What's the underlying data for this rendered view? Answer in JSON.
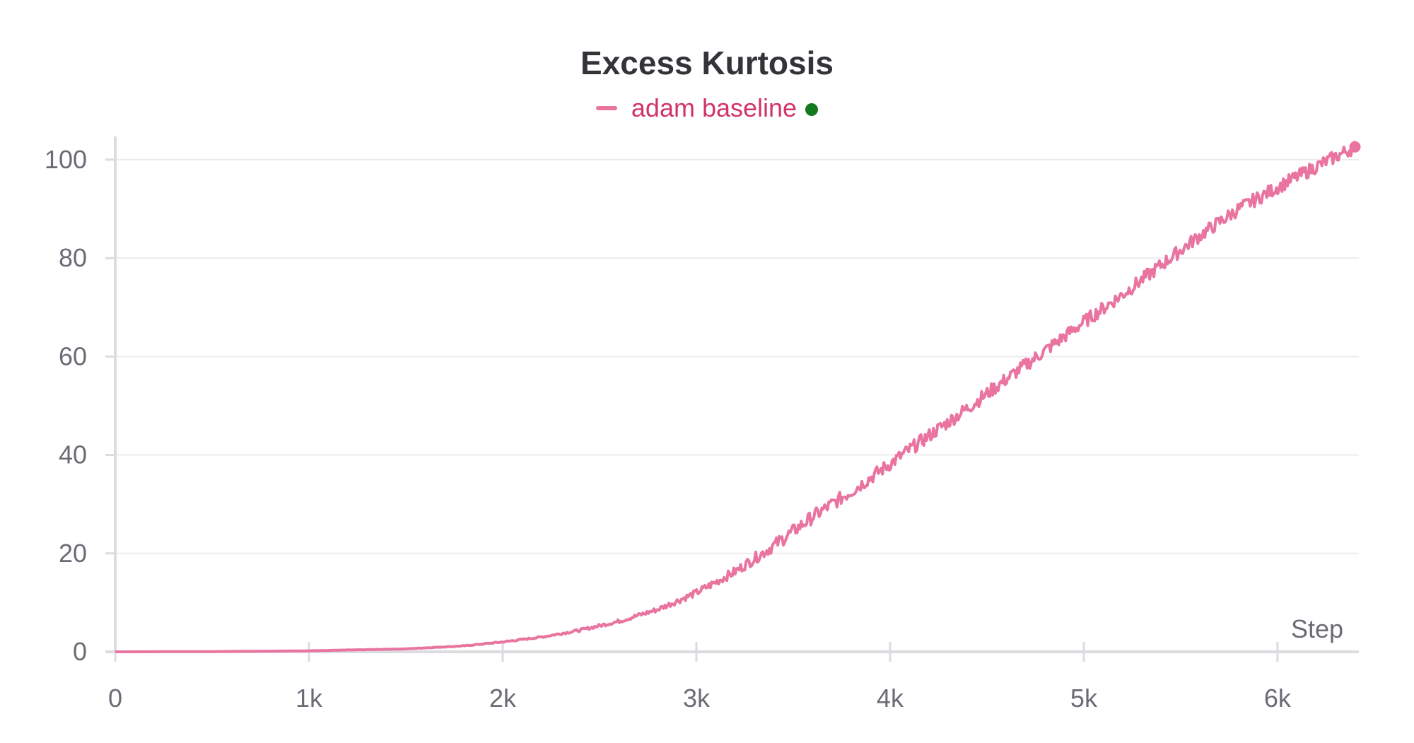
{
  "chart_data": {
    "type": "line",
    "title": "Excess Kurtosis",
    "xlabel": "Step",
    "ylabel": "",
    "xlim": [
      0,
      6420
    ],
    "ylim": [
      0,
      103
    ],
    "x_ticks": [
      {
        "value": 0,
        "label": "0"
      },
      {
        "value": 1000,
        "label": "1k"
      },
      {
        "value": 2000,
        "label": "2k"
      },
      {
        "value": 3000,
        "label": "3k"
      },
      {
        "value": 4000,
        "label": "4k"
      },
      {
        "value": 5000,
        "label": "5k"
      },
      {
        "value": 6000,
        "label": "6k"
      }
    ],
    "y_ticks": [
      {
        "value": 0,
        "label": "0"
      },
      {
        "value": 20,
        "label": "20"
      },
      {
        "value": 40,
        "label": "40"
      },
      {
        "value": 60,
        "label": "60"
      },
      {
        "value": 80,
        "label": "80"
      },
      {
        "value": 100,
        "label": "100"
      }
    ],
    "grid": "horizontal",
    "legend_position": "top-center",
    "series": [
      {
        "name": "adam baseline",
        "color": "#e8749f",
        "status_color": "#157a1f",
        "x": [
          0,
          500,
          1000,
          1500,
          1800,
          2000,
          2200,
          2400,
          2600,
          2800,
          3000,
          3200,
          3400,
          3600,
          3800,
          4000,
          4200,
          4400,
          4600,
          4800,
          5000,
          5200,
          5400,
          5600,
          5800,
          6000,
          6200,
          6400
        ],
        "values": [
          0,
          0.05,
          0.2,
          0.6,
          1.2,
          2.0,
          3.0,
          4.4,
          6.2,
          8.6,
          12.0,
          16.3,
          21.6,
          27.4,
          32.6,
          38.2,
          43.9,
          49.5,
          55.4,
          61.2,
          67.0,
          72.6,
          78.6,
          84.6,
          90.0,
          94.4,
          98.6,
          102.6
        ]
      }
    ]
  }
}
